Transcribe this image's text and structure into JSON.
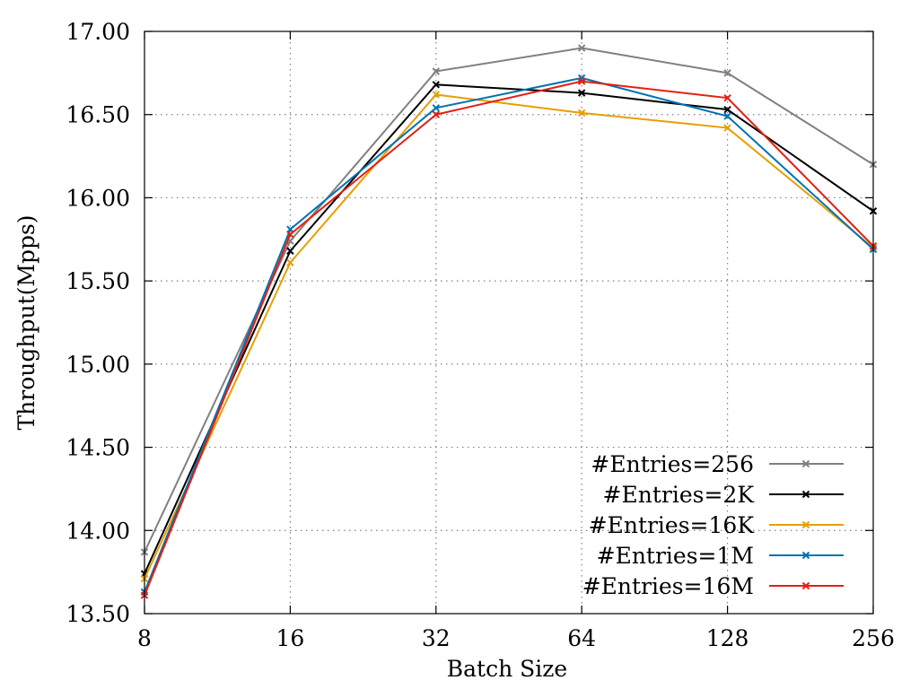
{
  "chart_data": {
    "type": "line",
    "title": "",
    "xlabel": "Batch Size",
    "ylabel": "Throughput(Mpps)",
    "x_scale": "log2",
    "categories": [
      "8",
      "16",
      "32",
      "64",
      "128",
      "256"
    ],
    "x": [
      8,
      16,
      32,
      64,
      128,
      256
    ],
    "ylim": [
      13.5,
      17.0
    ],
    "yticks": [
      "13.50",
      "14.00",
      "14.50",
      "15.00",
      "15.50",
      "16.00",
      "16.50",
      "17.00"
    ],
    "ytick_values": [
      13.5,
      14.0,
      14.5,
      15.0,
      15.5,
      16.0,
      16.5,
      17.0
    ],
    "grid": true,
    "legend_position": "bottom-right",
    "marker": "x",
    "series": [
      {
        "name": "#Entries=256",
        "color": "#808080",
        "values": [
          13.87,
          15.74,
          16.76,
          16.9,
          16.75,
          16.2
        ]
      },
      {
        "name": "#Entries=2K",
        "color": "#000000",
        "values": [
          13.74,
          15.68,
          16.68,
          16.63,
          16.53,
          15.92
        ]
      },
      {
        "name": "#Entries=16K",
        "color": "#e69f00",
        "values": [
          13.71,
          15.61,
          16.62,
          16.51,
          16.42,
          15.7
        ]
      },
      {
        "name": "#Entries=1M",
        "color": "#0072b2",
        "values": [
          13.63,
          15.81,
          16.54,
          16.72,
          16.49,
          15.69
        ]
      },
      {
        "name": "#Entries=16M",
        "color": "#e51e10",
        "values": [
          13.61,
          15.78,
          16.5,
          16.7,
          16.6,
          15.71
        ]
      }
    ]
  }
}
